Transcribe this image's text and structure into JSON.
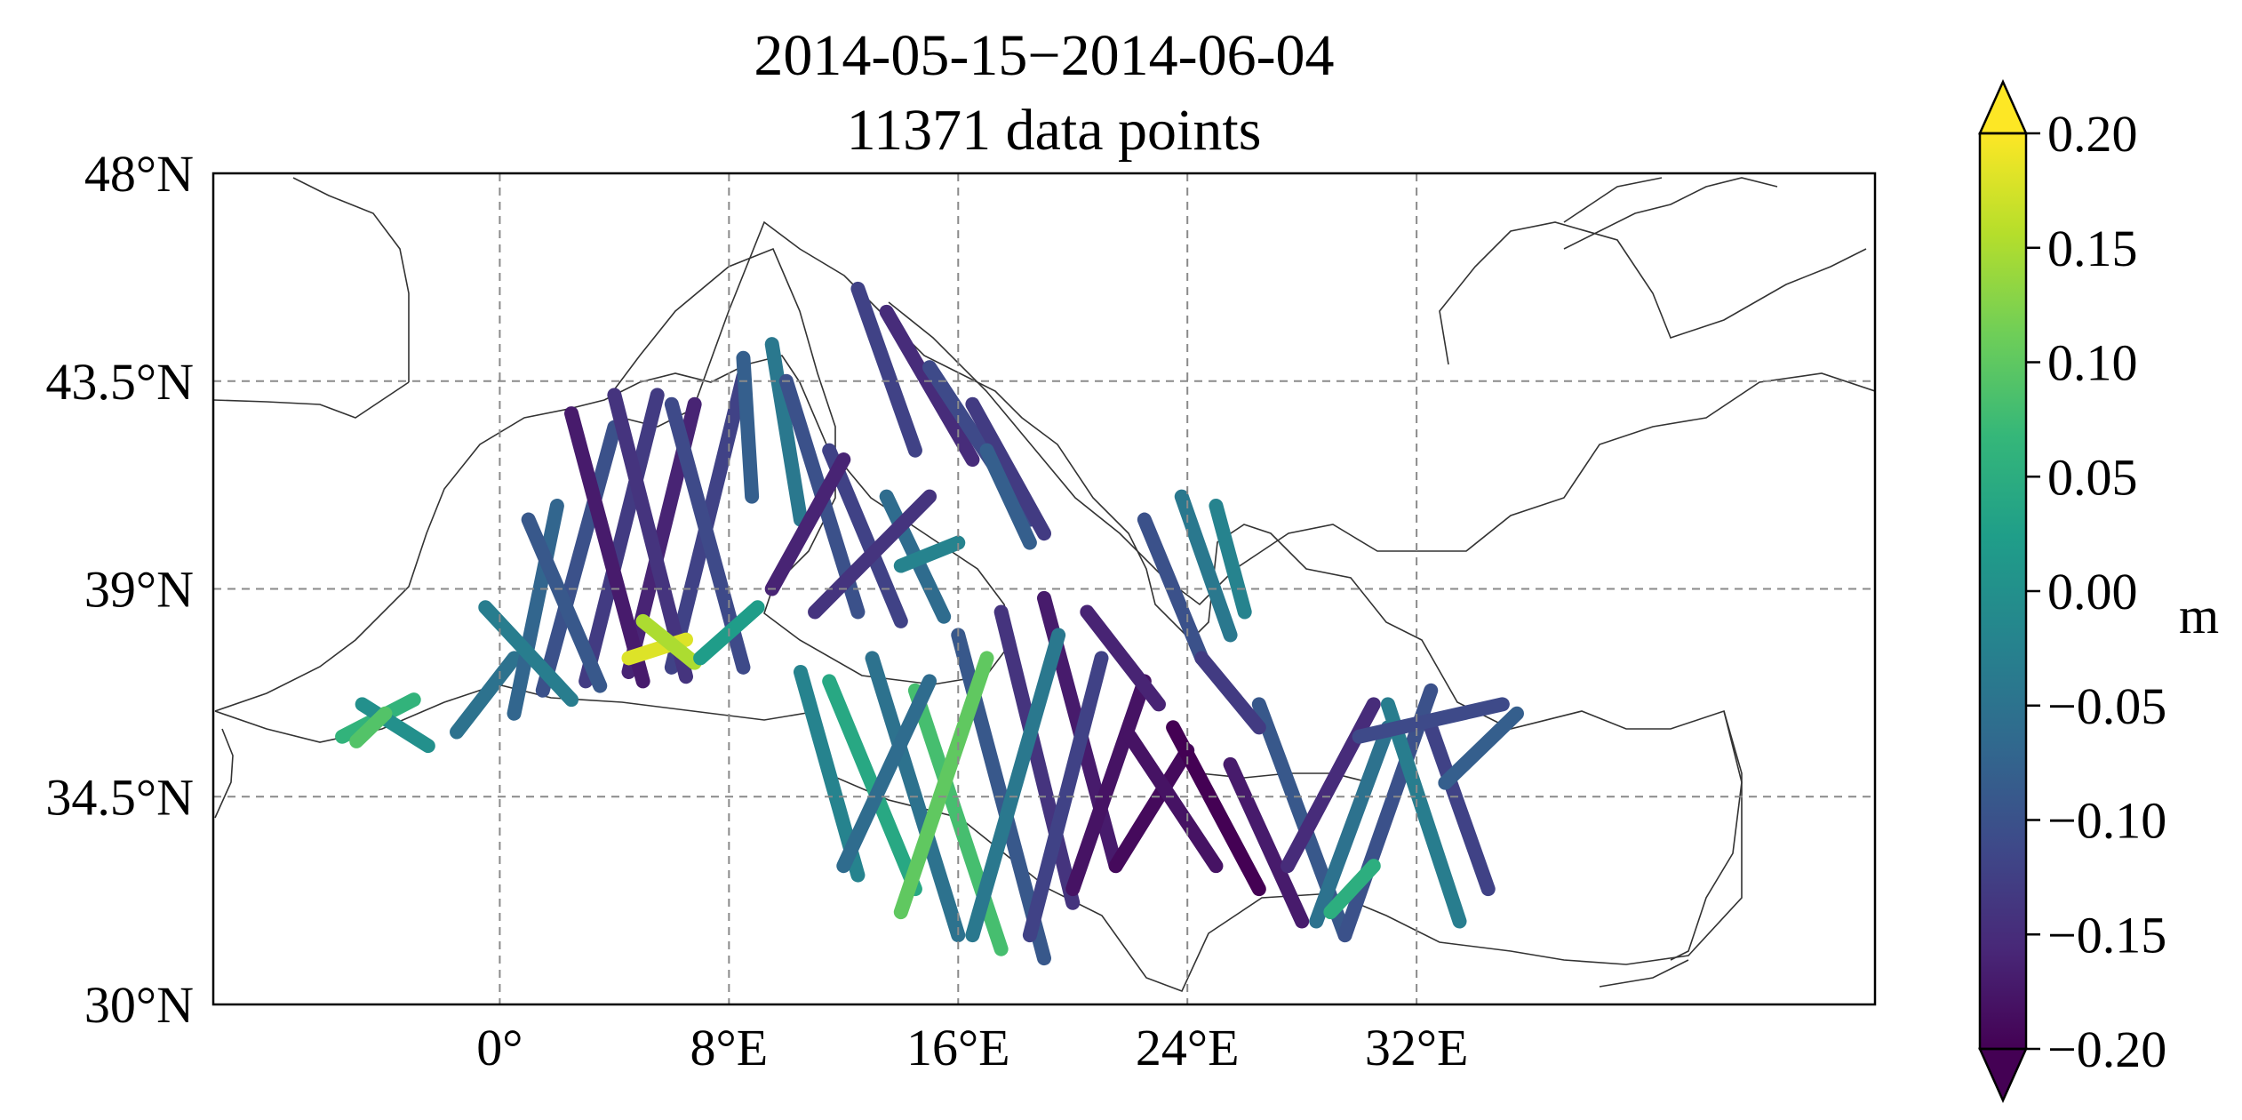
{
  "title": {
    "line1": "2014-05-15−2014-06-04",
    "line2": "11371 data points"
  },
  "map": {
    "lon_range": [
      -10,
      48
    ],
    "lat_range": [
      30,
      48
    ],
    "x_ticks": [
      {
        "lon": 0,
        "label": "0°"
      },
      {
        "lon": 8,
        "label": "8°E"
      },
      {
        "lon": 16,
        "label": "16°E"
      },
      {
        "lon": 24,
        "label": "24°E"
      },
      {
        "lon": 32,
        "label": "32°E"
      }
    ],
    "y_ticks": [
      {
        "lat": 30,
        "label": "30°N"
      },
      {
        "lat": 34.5,
        "label": "34.5°N"
      },
      {
        "lat": 39,
        "label": "39°N"
      },
      {
        "lat": 43.5,
        "label": "43.5°N"
      },
      {
        "lat": 48,
        "label": "48°N"
      }
    ],
    "grid": true,
    "gridlines_lon": [
      0,
      8,
      16,
      24,
      32
    ],
    "gridlines_lat": [
      34.5,
      39,
      43.5
    ],
    "coastline_color": "#333333",
    "track_note_value_range": [
      -0.2,
      0.2
    ],
    "tracks": [
      {
        "from": [
          -5.5,
          35.8
        ],
        "to": [
          -3.0,
          36.6
        ],
        "v": 0.06
      },
      {
        "from": [
          -4.8,
          36.5
        ],
        "to": [
          -2.5,
          35.6
        ],
        "v": 0.0
      },
      {
        "from": [
          -1.5,
          35.9
        ],
        "to": [
          0.5,
          37.5
        ],
        "v": -0.05
      },
      {
        "from": [
          0.5,
          36.3
        ],
        "to": [
          2.0,
          40.8
        ],
        "v": -0.07
      },
      {
        "from": [
          1.5,
          36.8
        ],
        "to": [
          4.0,
          42.5
        ],
        "v": -0.1
      },
      {
        "from": [
          3.0,
          37.0
        ],
        "to": [
          5.5,
          43.2
        ],
        "v": -0.13
      },
      {
        "from": [
          4.5,
          37.2
        ],
        "to": [
          6.8,
          43.0
        ],
        "v": -0.16
      },
      {
        "from": [
          6.0,
          37.3
        ],
        "to": [
          8.5,
          43.6
        ],
        "v": -0.12
      },
      {
        "from": [
          2.5,
          42.8
        ],
        "to": [
          5.0,
          37.0
        ],
        "v": -0.17
      },
      {
        "from": [
          4.0,
          43.2
        ],
        "to": [
          6.5,
          37.1
        ],
        "v": -0.14
      },
      {
        "from": [
          6.0,
          43.0
        ],
        "to": [
          8.5,
          37.3
        ],
        "v": -0.11
      },
      {
        "from": [
          1.0,
          40.5
        ],
        "to": [
          3.5,
          36.9
        ],
        "v": -0.09
      },
      {
        "from": [
          -0.5,
          38.6
        ],
        "to": [
          2.5,
          36.6
        ],
        "v": -0.03
      },
      {
        "from": [
          4.5,
          37.5
        ],
        "to": [
          6.5,
          37.9
        ],
        "v": 0.18
      },
      {
        "from": [
          5.0,
          38.3
        ],
        "to": [
          6.8,
          37.4
        ],
        "v": 0.15
      },
      {
        "from": [
          7.0,
          37.5
        ],
        "to": [
          9.0,
          38.6
        ],
        "v": 0.02
      },
      {
        "from": [
          9.5,
          44.3
        ],
        "to": [
          10.5,
          40.5
        ],
        "v": -0.04
      },
      {
        "from": [
          8.5,
          44.0
        ],
        "to": [
          8.8,
          41.0
        ],
        "v": -0.08
      },
      {
        "from": [
          10.0,
          43.5
        ],
        "to": [
          12.5,
          38.5
        ],
        "v": -0.1
      },
      {
        "from": [
          11.5,
          42.0
        ],
        "to": [
          14.0,
          38.3
        ],
        "v": -0.12
      },
      {
        "from": [
          13.5,
          41.0
        ],
        "to": [
          15.5,
          38.4
        ],
        "v": -0.06
      },
      {
        "from": [
          11.0,
          38.5
        ],
        "to": [
          15.0,
          41.0
        ],
        "v": -0.14
      },
      {
        "from": [
          9.5,
          39.0
        ],
        "to": [
          12.0,
          41.8
        ],
        "v": -0.16
      },
      {
        "from": [
          14.0,
          39.5
        ],
        "to": [
          16.0,
          40.0
        ],
        "v": -0.02
      },
      {
        "from": [
          12.5,
          45.5
        ],
        "to": [
          14.5,
          42.0
        ],
        "v": -0.12
      },
      {
        "from": [
          13.5,
          45.0
        ],
        "to": [
          16.5,
          41.8
        ],
        "v": -0.15
      },
      {
        "from": [
          15.0,
          43.8
        ],
        "to": [
          18.5,
          40.5
        ],
        "v": -0.11
      },
      {
        "from": [
          16.5,
          43.0
        ],
        "to": [
          19.0,
          40.2
        ],
        "v": -0.13
      },
      {
        "from": [
          17.0,
          42.0
        ],
        "to": [
          18.5,
          40.0
        ],
        "v": -0.08
      },
      {
        "from": [
          10.5,
          37.2
        ],
        "to": [
          12.5,
          32.8
        ],
        "v": -0.02
      },
      {
        "from": [
          11.5,
          37.0
        ],
        "to": [
          14.5,
          32.5
        ],
        "v": 0.04
      },
      {
        "from": [
          13.0,
          37.5
        ],
        "to": [
          16.0,
          31.5
        ],
        "v": -0.05
      },
      {
        "from": [
          14.5,
          36.8
        ],
        "to": [
          17.5,
          31.2
        ],
        "v": 0.08
      },
      {
        "from": [
          16.0,
          38.0
        ],
        "to": [
          19.0,
          31.0
        ],
        "v": -0.09
      },
      {
        "from": [
          17.5,
          38.5
        ],
        "to": [
          20.0,
          32.2
        ],
        "v": -0.14
      },
      {
        "from": [
          19.0,
          38.8
        ],
        "to": [
          21.5,
          33.0
        ],
        "v": -0.17
      },
      {
        "from": [
          12.0,
          33.0
        ],
        "to": [
          15.0,
          37.0
        ],
        "v": -0.06
      },
      {
        "from": [
          14.0,
          32.0
        ],
        "to": [
          17.0,
          37.5
        ],
        "v": 0.1
      },
      {
        "from": [
          16.5,
          31.5
        ],
        "to": [
          19.5,
          38.0
        ],
        "v": -0.04
      },
      {
        "from": [
          18.5,
          31.5
        ],
        "to": [
          21.0,
          37.5
        ],
        "v": -0.12
      },
      {
        "from": [
          20.0,
          32.5
        ],
        "to": [
          22.5,
          37.0
        ],
        "v": -0.18
      },
      {
        "from": [
          21.5,
          33.0
        ],
        "to": [
          24.0,
          35.5
        ],
        "v": -0.19
      },
      {
        "from": [
          22.0,
          35.8
        ],
        "to": [
          25.0,
          33.0
        ],
        "v": -0.18
      },
      {
        "from": [
          23.5,
          36.0
        ],
        "to": [
          26.5,
          32.5
        ],
        "v": -0.2
      },
      {
        "from": [
          25.5,
          35.2
        ],
        "to": [
          28.0,
          31.8
        ],
        "v": -0.17
      },
      {
        "from": [
          26.5,
          36.5
        ],
        "to": [
          29.5,
          31.5
        ],
        "v": -0.09
      },
      {
        "from": [
          27.5,
          33.0
        ],
        "to": [
          30.5,
          36.5
        ],
        "v": -0.15
      },
      {
        "from": [
          28.5,
          31.8
        ],
        "to": [
          31.0,
          36.0
        ],
        "v": -0.05
      },
      {
        "from": [
          29.5,
          31.5
        ],
        "to": [
          32.5,
          36.8
        ],
        "v": -0.1
      },
      {
        "from": [
          31.0,
          36.5
        ],
        "to": [
          33.5,
          31.8
        ],
        "v": -0.03
      },
      {
        "from": [
          32.5,
          36.0
        ],
        "to": [
          34.5,
          32.5
        ],
        "v": -0.12
      },
      {
        "from": [
          33.0,
          34.8
        ],
        "to": [
          35.5,
          36.3
        ],
        "v": -0.08
      },
      {
        "from": [
          30.0,
          35.8
        ],
        "to": [
          35.0,
          36.5
        ],
        "v": -0.11
      },
      {
        "from": [
          22.5,
          40.5
        ],
        "to": [
          24.5,
          37.5
        ],
        "v": -0.1
      },
      {
        "from": [
          23.8,
          41.0
        ],
        "to": [
          25.5,
          38.0
        ],
        "v": -0.04
      },
      {
        "from": [
          25.0,
          40.8
        ],
        "to": [
          26.0,
          38.5
        ],
        "v": -0.02
      },
      {
        "from": [
          24.5,
          37.5
        ],
        "to": [
          26.5,
          36.0
        ],
        "v": -0.13
      },
      {
        "from": [
          20.5,
          38.5
        ],
        "to": [
          23.0,
          36.5
        ],
        "v": -0.16
      },
      {
        "from": [
          -5.0,
          35.7
        ],
        "to": [
          -4.0,
          36.3
        ],
        "v": 0.09
      },
      {
        "from": [
          29.0,
          32.0
        ],
        "to": [
          30.5,
          33.0
        ],
        "v": 0.05
      }
    ]
  },
  "colorbar": {
    "min": -0.2,
    "max": 0.2,
    "tick_values": [
      0.2,
      0.15,
      0.1,
      0.05,
      0.0,
      -0.05,
      -0.1,
      -0.15,
      -0.2
    ],
    "tick_labels": [
      "0.20",
      "0.15",
      "0.10",
      "0.05",
      "0.00",
      "−0.05",
      "−0.10",
      "−0.15",
      "−0.20"
    ],
    "label": "m",
    "colormap_stops": [
      "#440154",
      "#482878",
      "#3e4989",
      "#31688e",
      "#26828e",
      "#1f9e89",
      "#35b779",
      "#6ece58",
      "#b5de2b",
      "#fde725"
    ],
    "extend": "both"
  }
}
